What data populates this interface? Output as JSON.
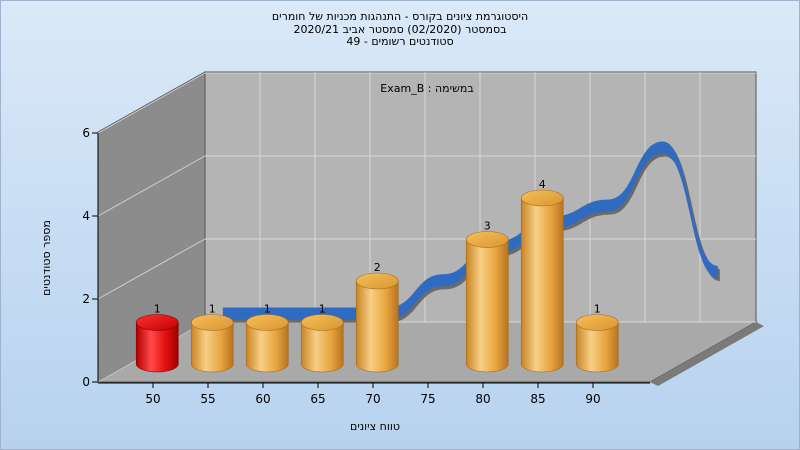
{
  "title_lines": [
    "היסטוגרמת ציונים בקורס - התנהגות מכניות של חומרים",
    "בסמסטר  (02/2020)  סמסטר אביב  2020/21",
    "סטודנטים רשומים - 49"
  ],
  "chart_data": {
    "type": "bar",
    "inner_label": "במשימה : Exam_B",
    "categories": [
      "50-55",
      "55-60",
      "60-65",
      "65-70",
      "70-75",
      "75-80",
      "80-85",
      "85-90",
      "90-95"
    ],
    "values": [
      1,
      1,
      1,
      1,
      2,
      0,
      3,
      4,
      1
    ],
    "x_ticks": [
      "50",
      "55",
      "60",
      "65",
      "70",
      "75",
      "80",
      "85",
      "90"
    ],
    "y_ticks": [
      "0",
      "2",
      "4",
      "6"
    ],
    "ylim": [
      0,
      6
    ],
    "xlabel": "טווח ציונים",
    "ylabel": "מספר סטודנטים",
    "distribution_curve": [
      1,
      1,
      1,
      1,
      1.8,
      2.6,
      3.2,
      3.6,
      5,
      2
    ],
    "colors": {
      "highlight_bar": "#e01010",
      "bar": "#e8a540",
      "curve": "#2f6bc0",
      "curve_shadow": "#6a6a6a",
      "back_wall": "#b4b4b4",
      "side_wall": "#8c8c8c",
      "floor": "#a9a9a9"
    }
  }
}
